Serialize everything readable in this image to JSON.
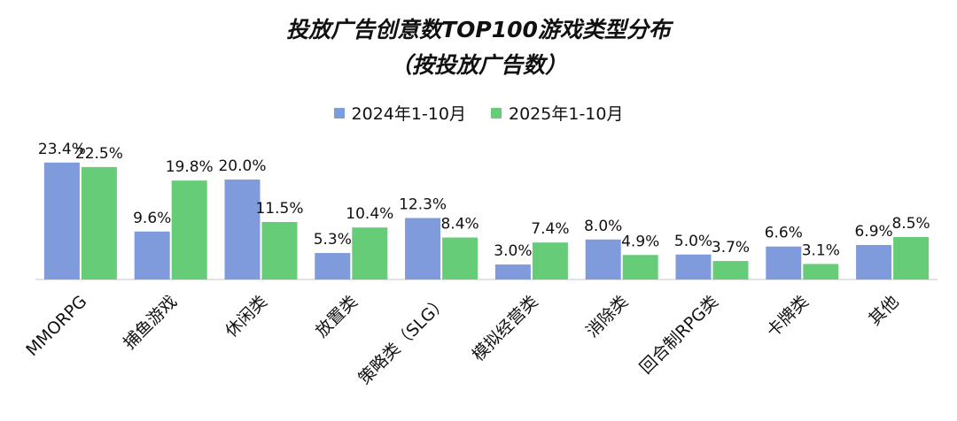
{
  "chart_data": {
    "type": "bar",
    "title": "投放广告创意数TOP100游戏类型分布",
    "subtitle": "（按投放广告数）",
    "categories": [
      "MMORPG",
      "捕鱼游戏",
      "休闲类",
      "放置类",
      "策略类（SLG）",
      "模拟经营类",
      "消除类",
      "回合制RPG类",
      "卡牌类",
      "其他"
    ],
    "series": [
      {
        "name": "2024年1-10月",
        "color": "#7f9bdb",
        "values": [
          23.4,
          9.6,
          20.0,
          5.3,
          12.3,
          3.0,
          8.0,
          5.0,
          6.6,
          6.9
        ],
        "labels": [
          "23.4%",
          "9.6%",
          "20.0%",
          "5.3%",
          "12.3%",
          "3.0%",
          "8.0%",
          "5.0%",
          "6.6%",
          "6.9%"
        ]
      },
      {
        "name": "2025年1-10月",
        "color": "#66cc77",
        "values": [
          22.5,
          19.8,
          11.5,
          10.4,
          8.4,
          7.4,
          4.9,
          3.7,
          3.1,
          8.5
        ],
        "labels": [
          "22.5%",
          "19.8%",
          "11.5%",
          "10.4%",
          "8.4%",
          "7.4%",
          "4.9%",
          "3.7%",
          "3.1%",
          "8.5%"
        ]
      }
    ],
    "ylim": [
      0,
      25
    ],
    "unit": "%",
    "legend": "top-center",
    "grid": false
  }
}
